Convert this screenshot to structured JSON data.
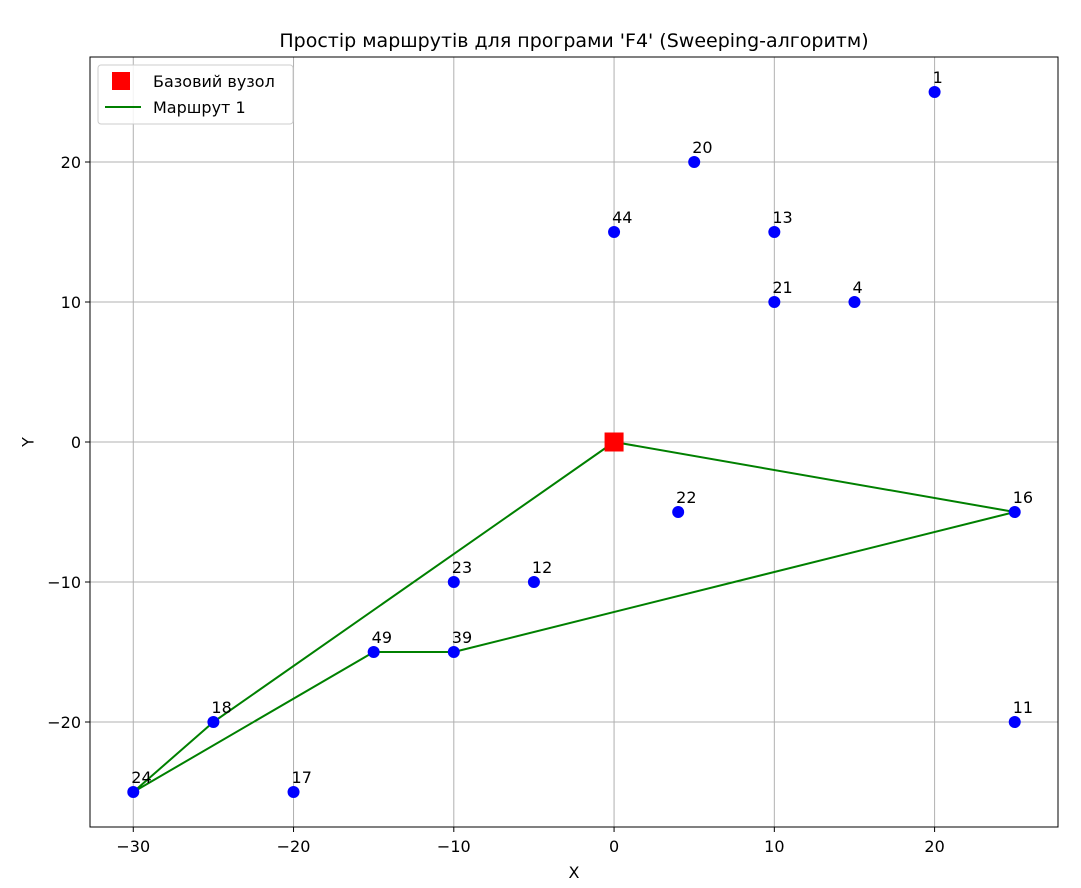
{
  "chart_data": {
    "type": "scatter",
    "title": "Простір маршрутів для програми 'F4' (Sweeping-алгоритм)",
    "xlabel": "X",
    "ylabel": "Y",
    "xlim": [
      -32.7,
      27.7
    ],
    "ylim": [
      -27.5,
      27.5
    ],
    "xticks": [
      -30,
      -20,
      -10,
      0,
      10,
      20
    ],
    "yticks": [
      -20,
      -10,
      0,
      10,
      20
    ],
    "xtick_labels": [
      "−30",
      "−20",
      "−10",
      "0",
      "10",
      "20"
    ],
    "ytick_labels": [
      "−20",
      "−10",
      "0",
      "10",
      "20"
    ],
    "grid": true,
    "legend_position": "top-left",
    "depot": {
      "name": "Базовий вузол",
      "x": 0,
      "y": 0,
      "color": "#ff0000",
      "marker": "square"
    },
    "points": [
      {
        "label": "1",
        "x": 20,
        "y": 25
      },
      {
        "label": "20",
        "x": 5,
        "y": 20
      },
      {
        "label": "44",
        "x": 0,
        "y": 15
      },
      {
        "label": "13",
        "x": 10,
        "y": 15
      },
      {
        "label": "21",
        "x": 10,
        "y": 10
      },
      {
        "label": "4",
        "x": 15,
        "y": 10
      },
      {
        "label": "22",
        "x": 4,
        "y": -5
      },
      {
        "label": "16",
        "x": 25,
        "y": -5
      },
      {
        "label": "23",
        "x": -10,
        "y": -10
      },
      {
        "label": "12",
        "x": -5,
        "y": -10
      },
      {
        "label": "49",
        "x": -15,
        "y": -15
      },
      {
        "label": "39",
        "x": -10,
        "y": -15
      },
      {
        "label": "18",
        "x": -25,
        "y": -20
      },
      {
        "label": "11",
        "x": 25,
        "y": -20
      },
      {
        "label": "24",
        "x": -30,
        "y": -25
      },
      {
        "label": "17",
        "x": -20,
        "y": -25
      }
    ],
    "point_color": "#0000ff",
    "series": [
      {
        "name": "Маршрут 1",
        "color": "#008000",
        "x": [
          0,
          -25,
          -30,
          -15,
          -10,
          25,
          0
        ],
        "y": [
          0,
          -20,
          -25,
          -15,
          -15,
          -5,
          0
        ]
      }
    ]
  }
}
